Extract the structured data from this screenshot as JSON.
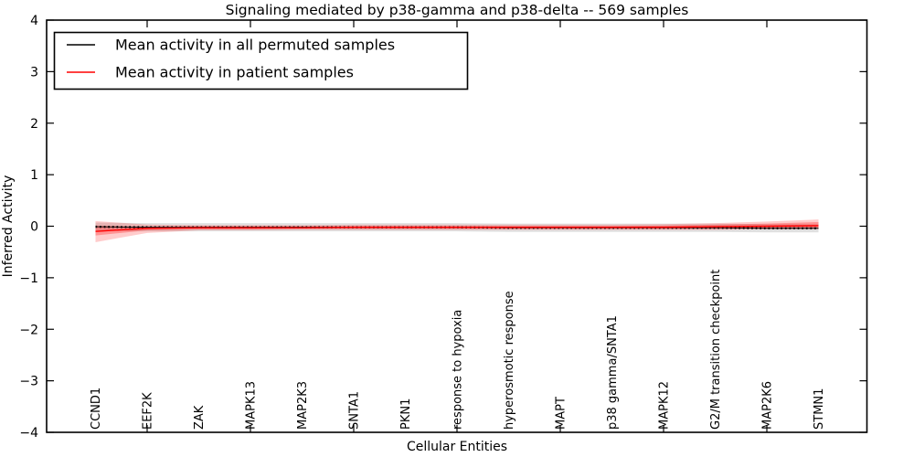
{
  "chart_data": {
    "type": "line",
    "title": "Signaling mediated by p38-gamma and p38-delta -- 569 samples",
    "xlabel": "Cellular Entities",
    "ylabel": "Inferred Activity",
    "ylim": [
      -4,
      4
    ],
    "ytick_values": [
      4,
      3,
      2,
      1,
      0,
      -1,
      -2,
      -3,
      -4
    ],
    "ytick_labels": [
      "4",
      "3",
      "2",
      "1",
      "0",
      "−1",
      "−2",
      "−3",
      "−4"
    ],
    "x_major_tick_indices": [
      1,
      3,
      5,
      7,
      9,
      11,
      13
    ],
    "grid": false,
    "categories": [
      "CCND1",
      "EEF2K",
      "ZAK",
      "MAPK13",
      "MAP2K3",
      "SNTA1",
      "PKN1",
      "response to hypoxia",
      "hyperosmotic response",
      "MAPT",
      "p38 gamma/SNTA1",
      "MAPK12",
      "G2/M transition checkpoint",
      "MAP2K6",
      "STMN1"
    ],
    "series": [
      {
        "name": "Mean activity in all permuted samples",
        "color": "#000000",
        "style": "solid-with-dot-markers",
        "values": [
          -0.01,
          -0.02,
          -0.02,
          -0.02,
          -0.02,
          -0.02,
          -0.02,
          -0.02,
          -0.03,
          -0.03,
          -0.03,
          -0.03,
          -0.03,
          -0.04,
          -0.04
        ]
      },
      {
        "name": "Mean activity in patient samples",
        "color": "#ff0000",
        "style": "solid",
        "values": [
          -0.1,
          -0.04,
          -0.03,
          -0.03,
          -0.03,
          -0.02,
          -0.02,
          -0.02,
          -0.02,
          -0.02,
          -0.02,
          -0.02,
          -0.01,
          0.0,
          0.01
        ]
      }
    ],
    "bands": [
      {
        "name": "permuted-confidence-band",
        "color": "rgba(0,0,0,0.12)",
        "upper": [
          0.07,
          0.06,
          0.06,
          0.06,
          0.06,
          0.06,
          0.06,
          0.06,
          0.05,
          0.05,
          0.05,
          0.05,
          0.05,
          0.04,
          0.04
        ],
        "lower": [
          -0.09,
          -0.1,
          -0.1,
          -0.1,
          -0.1,
          -0.1,
          -0.1,
          -0.1,
          -0.11,
          -0.11,
          -0.11,
          -0.11,
          -0.11,
          -0.12,
          -0.12
        ]
      },
      {
        "name": "patient-confidence-band-outer",
        "color": "rgba(255,0,0,0.20)",
        "upper": [
          0.1,
          0.03,
          0.02,
          0.02,
          0.02,
          0.03,
          0.03,
          0.03,
          0.03,
          0.03,
          0.03,
          0.04,
          0.06,
          0.09,
          0.13
        ],
        "lower": [
          -0.31,
          -0.13,
          -0.08,
          -0.08,
          -0.07,
          -0.07,
          -0.07,
          -0.07,
          -0.07,
          -0.07,
          -0.07,
          -0.07,
          -0.07,
          -0.06,
          -0.06
        ]
      },
      {
        "name": "patient-confidence-band-inner",
        "color": "rgba(255,0,0,0.28)",
        "upper": [
          0.01,
          -0.01,
          0.0,
          0.0,
          0.0,
          0.0,
          0.0,
          0.0,
          0.0,
          0.0,
          0.0,
          0.01,
          0.03,
          0.05,
          0.08
        ],
        "lower": [
          -0.18,
          -0.08,
          -0.06,
          -0.06,
          -0.05,
          -0.05,
          -0.05,
          -0.05,
          -0.05,
          -0.05,
          -0.05,
          -0.05,
          -0.05,
          -0.04,
          -0.03
        ]
      }
    ],
    "legend": {
      "position": "upper left",
      "entries": [
        {
          "label": "Mean activity in all permuted samples",
          "color": "#000000"
        },
        {
          "label": "Mean activity in patient samples",
          "color": "#ff0000"
        }
      ]
    }
  }
}
